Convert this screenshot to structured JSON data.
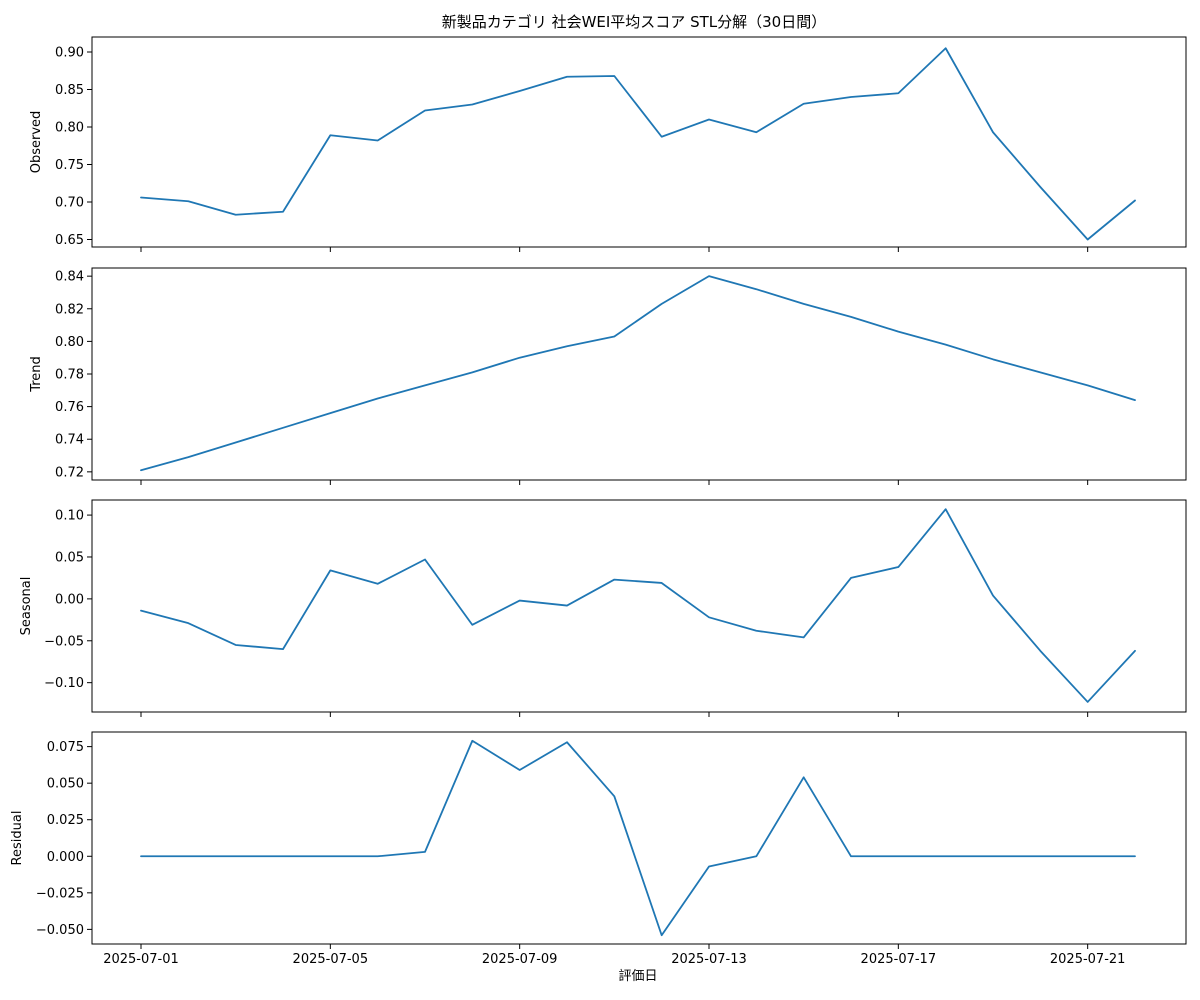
{
  "chart_data": {
    "type": "line",
    "title": "新製品カテゴリ 社会WEI平均スコア STL分解（30日間）",
    "xlabel": "評価日",
    "line_color": "#1f77b4",
    "x": [
      "2025-07-01",
      "2025-07-02",
      "2025-07-03",
      "2025-07-04",
      "2025-07-05",
      "2025-07-06",
      "2025-07-07",
      "2025-07-08",
      "2025-07-09",
      "2025-07-10",
      "2025-07-11",
      "2025-07-12",
      "2025-07-13",
      "2025-07-14",
      "2025-07-15",
      "2025-07-16",
      "2025-07-17",
      "2025-07-18",
      "2025-07-19",
      "2025-07-20",
      "2025-07-21",
      "2025-07-22"
    ],
    "x_ticks": [
      "2025-07-01",
      "2025-07-05",
      "2025-07-09",
      "2025-07-13",
      "2025-07-17",
      "2025-07-21"
    ],
    "grid": false,
    "panels": [
      {
        "name": "Observed",
        "ylabel": "Observed",
        "ylim": [
          0.64,
          0.92
        ],
        "yticks": [
          0.65,
          0.7,
          0.75,
          0.8,
          0.85,
          0.9
        ],
        "ytick_labels": [
          "0.65",
          "0.70",
          "0.75",
          "0.80",
          "0.85",
          "0.90"
        ],
        "values": [
          0.706,
          0.701,
          0.683,
          0.687,
          0.789,
          0.782,
          0.822,
          0.83,
          0.848,
          0.867,
          0.868,
          0.787,
          0.81,
          0.793,
          0.831,
          0.84,
          0.845,
          0.905,
          0.793,
          0.72,
          0.65,
          0.702
        ]
      },
      {
        "name": "Trend",
        "ylabel": "Trend",
        "ylim": [
          0.715,
          0.845
        ],
        "yticks": [
          0.72,
          0.74,
          0.76,
          0.78,
          0.8,
          0.82,
          0.84
        ],
        "ytick_labels": [
          "0.72",
          "0.74",
          "0.76",
          "0.78",
          "0.80",
          "0.82",
          "0.84"
        ],
        "values": [
          0.721,
          0.729,
          0.738,
          0.747,
          0.756,
          0.765,
          0.773,
          0.781,
          0.79,
          0.797,
          0.803,
          0.823,
          0.84,
          0.832,
          0.823,
          0.815,
          0.806,
          0.798,
          0.789,
          0.781,
          0.773,
          0.764
        ]
      },
      {
        "name": "Seasonal",
        "ylabel": "Seasonal",
        "ylim": [
          -0.135,
          0.118
        ],
        "yticks": [
          -0.1,
          -0.05,
          0.0,
          0.05,
          0.1
        ],
        "ytick_labels": [
          "−0.10",
          "−0.05",
          "0.00",
          "0.05",
          "0.10"
        ],
        "values": [
          -0.014,
          -0.029,
          -0.055,
          -0.06,
          0.034,
          0.018,
          0.047,
          -0.031,
          -0.002,
          -0.008,
          0.023,
          0.019,
          -0.022,
          -0.038,
          -0.046,
          0.025,
          0.038,
          0.107,
          0.004,
          -0.062,
          -0.123,
          -0.062
        ]
      },
      {
        "name": "Residual",
        "ylabel": "Residual",
        "ylim": [
          -0.06,
          0.085
        ],
        "yticks": [
          -0.05,
          -0.025,
          0.0,
          0.025,
          0.05,
          0.075
        ],
        "ytick_labels": [
          "−0.050",
          "−0.025",
          "0.000",
          "0.025",
          "0.050",
          "0.075"
        ],
        "values": [
          0.0,
          0.0,
          0.0,
          0.0,
          0.0,
          0.0,
          0.003,
          0.079,
          0.059,
          0.078,
          0.041,
          -0.054,
          -0.007,
          0.0,
          0.054,
          0.0,
          0.0,
          0.0,
          0.0,
          0.0,
          0.0,
          0.0
        ]
      }
    ]
  }
}
